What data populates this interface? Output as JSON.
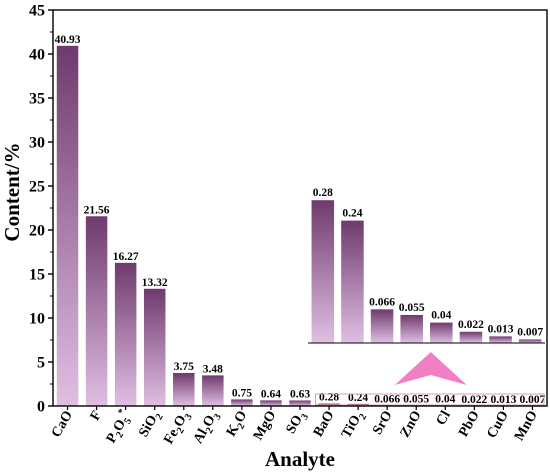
{
  "chart_data": {
    "type": "bar",
    "xlabel": "Analyte",
    "ylabel": "Content/%",
    "ylim": [
      0,
      45
    ],
    "yticks": [
      0,
      5,
      10,
      15,
      20,
      25,
      30,
      35,
      40,
      45
    ],
    "grid": false,
    "colors": {
      "bar_top": "#6f3a6e",
      "bar_bottom": "#e0bfe2",
      "arrow": "#f07fc4",
      "highlight_box": "#d9a0a0"
    },
    "categories": [
      "CaO",
      "F",
      "P2O5*",
      "SiO2",
      "Fe2O3",
      "Al2O3",
      "K2O",
      "MgO",
      "SO3",
      "BaO",
      "TiO2",
      "SrO",
      "ZnO",
      "Cl",
      "PbO",
      "CuO",
      "MnO"
    ],
    "category_labels": [
      {
        "base": "CaO"
      },
      {
        "base": "F"
      },
      {
        "base": "P",
        "sub": "2",
        "rest": "O",
        "sub2": "5",
        "sup": "*"
      },
      {
        "base": "SiO",
        "sub": "2"
      },
      {
        "base": "Fe",
        "sub": "2",
        "rest": "O",
        "sub2": "3"
      },
      {
        "base": "Al",
        "sub": "2",
        "rest": "O",
        "sub2": "3"
      },
      {
        "base": "K",
        "sub": "2",
        "rest": "O"
      },
      {
        "base": "MgO"
      },
      {
        "base": "SO",
        "sub": "3"
      },
      {
        "base": "BaO"
      },
      {
        "base": "TiO",
        "sub": "2"
      },
      {
        "base": "SrO"
      },
      {
        "base": "ZnO"
      },
      {
        "base": "Cl"
      },
      {
        "base": "PbO"
      },
      {
        "base": "CuO"
      },
      {
        "base": "MnO"
      }
    ],
    "values": [
      40.93,
      21.56,
      16.27,
      13.32,
      3.75,
      3.48,
      0.75,
      0.64,
      0.63,
      0.28,
      0.24,
      0.066,
      0.055,
      0.04,
      0.022,
      0.013,
      0.007
    ],
    "value_labels": [
      "40.93",
      "21.56",
      "16.27",
      "13.32",
      "3.75",
      "3.48",
      "0.75",
      "0.64",
      "0.63",
      "0.28",
      "0.24",
      "0.066",
      "0.055",
      "0.04",
      "0.022",
      "0.013",
      "0.007"
    ],
    "inset": {
      "description_note": "zoomed view of BaO through MnO",
      "categories": [
        "BaO",
        "TiO2",
        "SrO",
        "ZnO",
        "Cl",
        "PbO",
        "CuO",
        "MnO"
      ],
      "values": [
        0.28,
        0.24,
        0.066,
        0.055,
        0.04,
        0.022,
        0.013,
        0.007
      ],
      "value_labels": [
        "0.28",
        "0.24",
        "0.066",
        "0.055",
        "0.04",
        "0.022",
        "0.013",
        "0.007"
      ]
    }
  }
}
